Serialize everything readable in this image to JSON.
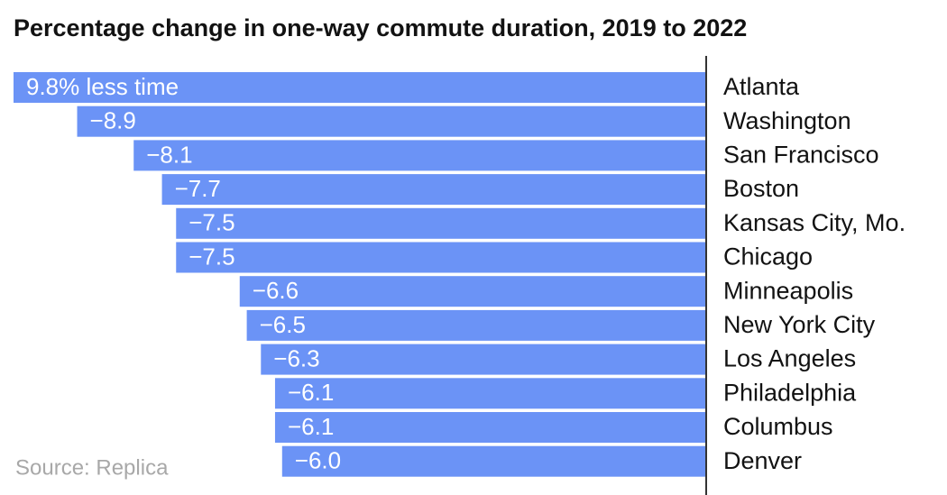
{
  "chart_data": {
    "type": "bar",
    "orientation": "horizontal",
    "title": "Percentage change in one-way commute duration, 2019 to 2022",
    "source": "Source: Replica",
    "categories": [
      "Atlanta",
      "Washington",
      "San Francisco",
      "Boston",
      "Kansas City, Mo.",
      "Chicago",
      "Minneapolis",
      "New York City",
      "Los Angeles",
      "Philadelphia",
      "Columbus",
      "Denver"
    ],
    "values": [
      -9.8,
      -8.9,
      -8.1,
      -7.7,
      -7.5,
      -7.5,
      -6.6,
      -6.5,
      -6.3,
      -6.1,
      -6.1,
      -6.0
    ],
    "value_labels": [
      "9.8% less time",
      "−8.9",
      "−8.1",
      "−7.7",
      "−7.5",
      "−7.5",
      "−6.6",
      "−6.5",
      "−6.3",
      "−6.1",
      "−6.1",
      "−6.0"
    ],
    "color": "#6b93f6"
  }
}
